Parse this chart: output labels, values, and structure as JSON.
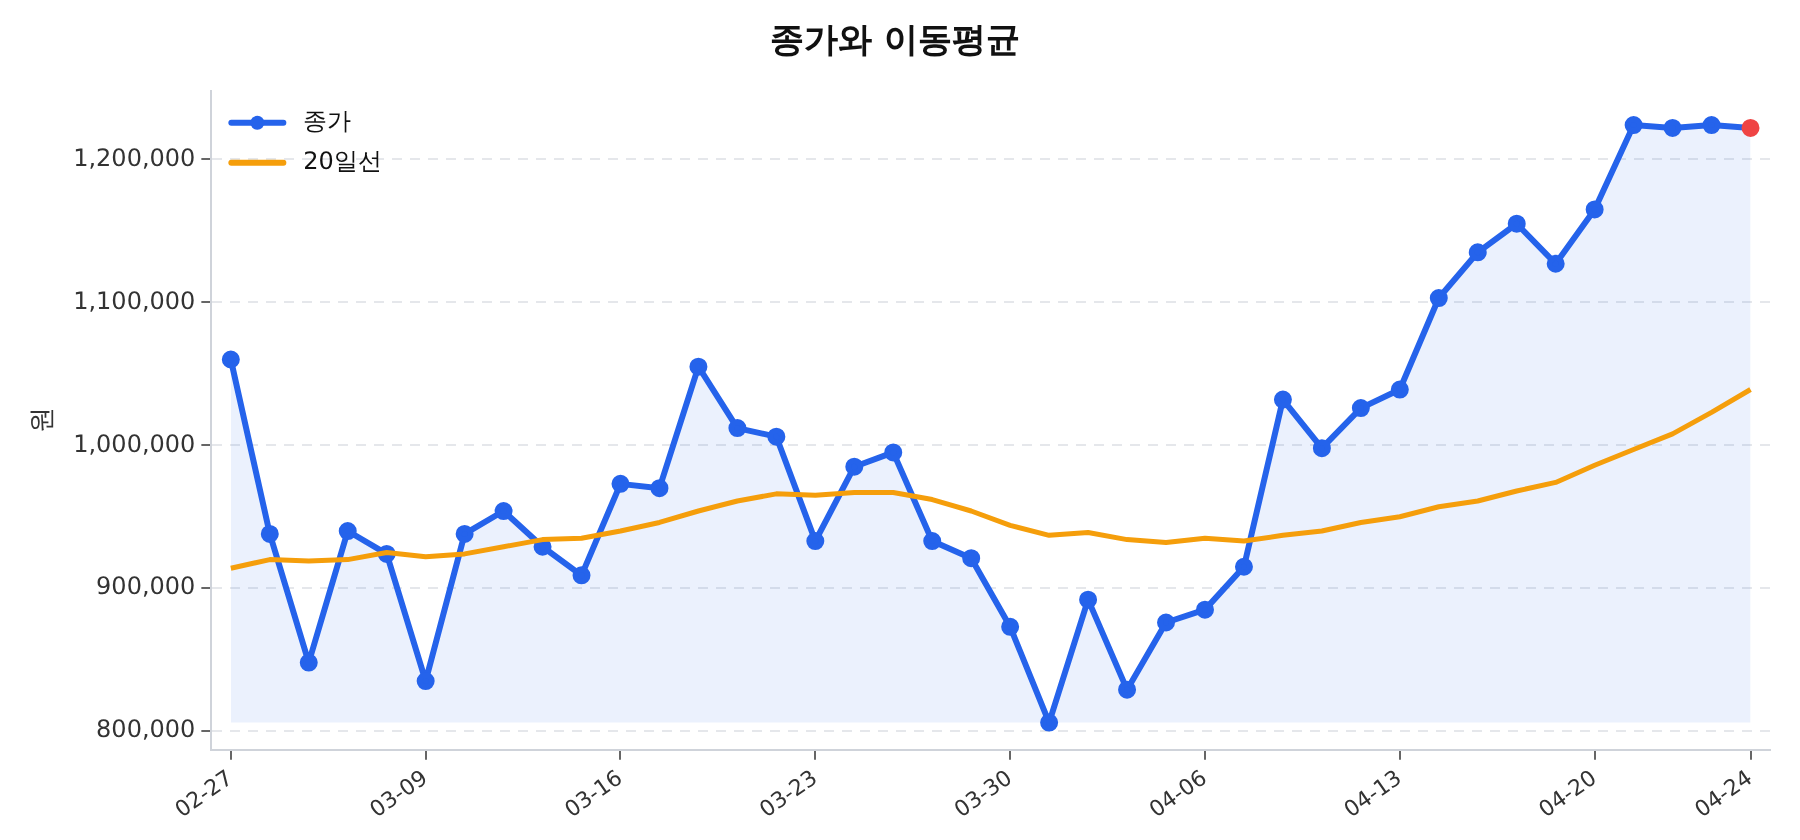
{
  "chart_data": {
    "type": "line",
    "title": "종가와 이동평균",
    "ylabel": "원",
    "categories": [
      "02-27",
      null,
      null,
      null,
      null,
      "03-09",
      null,
      null,
      null,
      null,
      "03-16",
      null,
      null,
      null,
      null,
      "03-23",
      null,
      null,
      null,
      null,
      "03-30",
      null,
      null,
      null,
      null,
      "04-06",
      null,
      null,
      null,
      null,
      "04-13",
      null,
      null,
      null,
      null,
      "04-20",
      null,
      null,
      null,
      "04-24"
    ],
    "series": [
      {
        "name": "종가",
        "type": "area",
        "color": "#2563eb",
        "marker": "circle",
        "colors": [
          "#2563eb",
          "#2563eb",
          "#2563eb",
          "#2563eb",
          "#2563eb",
          "#2563eb",
          "#2563eb",
          "#2563eb",
          "#2563eb",
          "#2563eb",
          "#2563eb",
          "#2563eb",
          "#2563eb",
          "#2563eb",
          "#2563eb",
          "#2563eb",
          "#2563eb",
          "#2563eb",
          "#2563eb",
          "#2563eb",
          "#2563eb",
          "#2563eb",
          "#2563eb",
          "#2563eb",
          "#2563eb",
          "#2563eb",
          "#2563eb",
          "#2563eb",
          "#2563eb",
          "#2563eb",
          "#2563eb",
          "#2563eb",
          "#2563eb",
          "#2563eb",
          "#2563eb",
          "#2563eb",
          "#2563eb",
          "#2563eb",
          "#2563eb",
          "#ef4444"
        ],
        "values": [
          1060000,
          938000,
          848000,
          940000,
          924000,
          835000,
          938000,
          954000,
          929000,
          909000,
          973000,
          970000,
          1055000,
          1012000,
          1006000,
          933000,
          985000,
          995000,
          933000,
          921000,
          873000,
          806000,
          892000,
          829000,
          876000,
          885000,
          915000,
          1032000,
          998000,
          1026000,
          1039000,
          1103000,
          1135000,
          1155000,
          1127000,
          1165000,
          1224000,
          1222000,
          1224000,
          1222000
        ]
      },
      {
        "name": "20일선",
        "type": "line",
        "color": "#f59e0b",
        "marker": "none",
        "values": [
          914000,
          920000,
          919000,
          920000,
          925000,
          922000,
          924000,
          929000,
          934000,
          935000,
          940000,
          946000,
          954000,
          961000,
          966000,
          965000,
          967000,
          967000,
          962000,
          954000,
          944000,
          937000,
          939000,
          934000,
          932000,
          935000,
          933000,
          937000,
          940000,
          946000,
          950000,
          957000,
          961000,
          968000,
          974000,
          986000,
          997000,
          1008000,
          1023000,
          1039000
        ]
      }
    ],
    "ylim": [
      787000,
      1248000
    ],
    "yticks": [
      {
        "value": 800000,
        "label": "800,000"
      },
      {
        "value": 900000,
        "label": "900,000"
      },
      {
        "value": 1000000,
        "label": "1,000,000"
      },
      {
        "value": 1100000,
        "label": "1,100,000"
      },
      {
        "value": 1200000,
        "label": "1,200,000"
      }
    ],
    "grid": "y",
    "legend": "top left"
  }
}
